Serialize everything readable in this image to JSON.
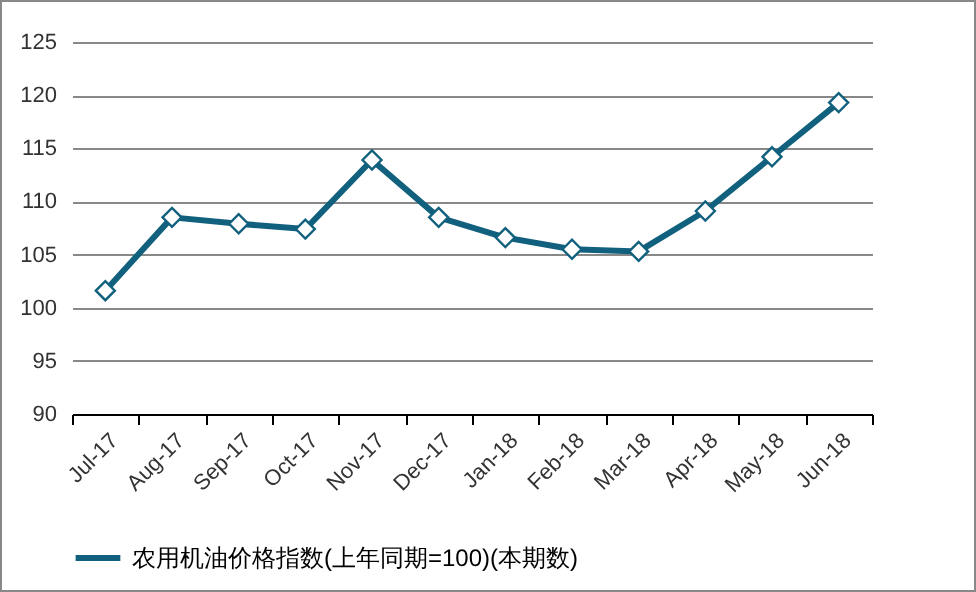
{
  "chart_data": {
    "type": "line",
    "categories": [
      "Jul-17",
      "Aug-17",
      "Sep-17",
      "Oct-17",
      "Nov-17",
      "Dec-17",
      "Jan-18",
      "Feb-18",
      "Mar-18",
      "Apr-18",
      "May-18",
      "Jun-18"
    ],
    "series": [
      {
        "name": "农用机油价格指数(上年同期=100)(本期数)",
        "color": "#11607d",
        "values": [
          101.6,
          108.5,
          107.9,
          107.4,
          113.9,
          108.5,
          106.6,
          105.5,
          105.3,
          109.1,
          114.2,
          119.3
        ]
      }
    ],
    "ylim": [
      90,
      125
    ],
    "yticks": [
      90,
      95,
      100,
      105,
      110,
      115,
      120,
      125
    ],
    "grid": "y",
    "legend": "bottom",
    "marker": "diamond",
    "line_style": "solid"
  }
}
